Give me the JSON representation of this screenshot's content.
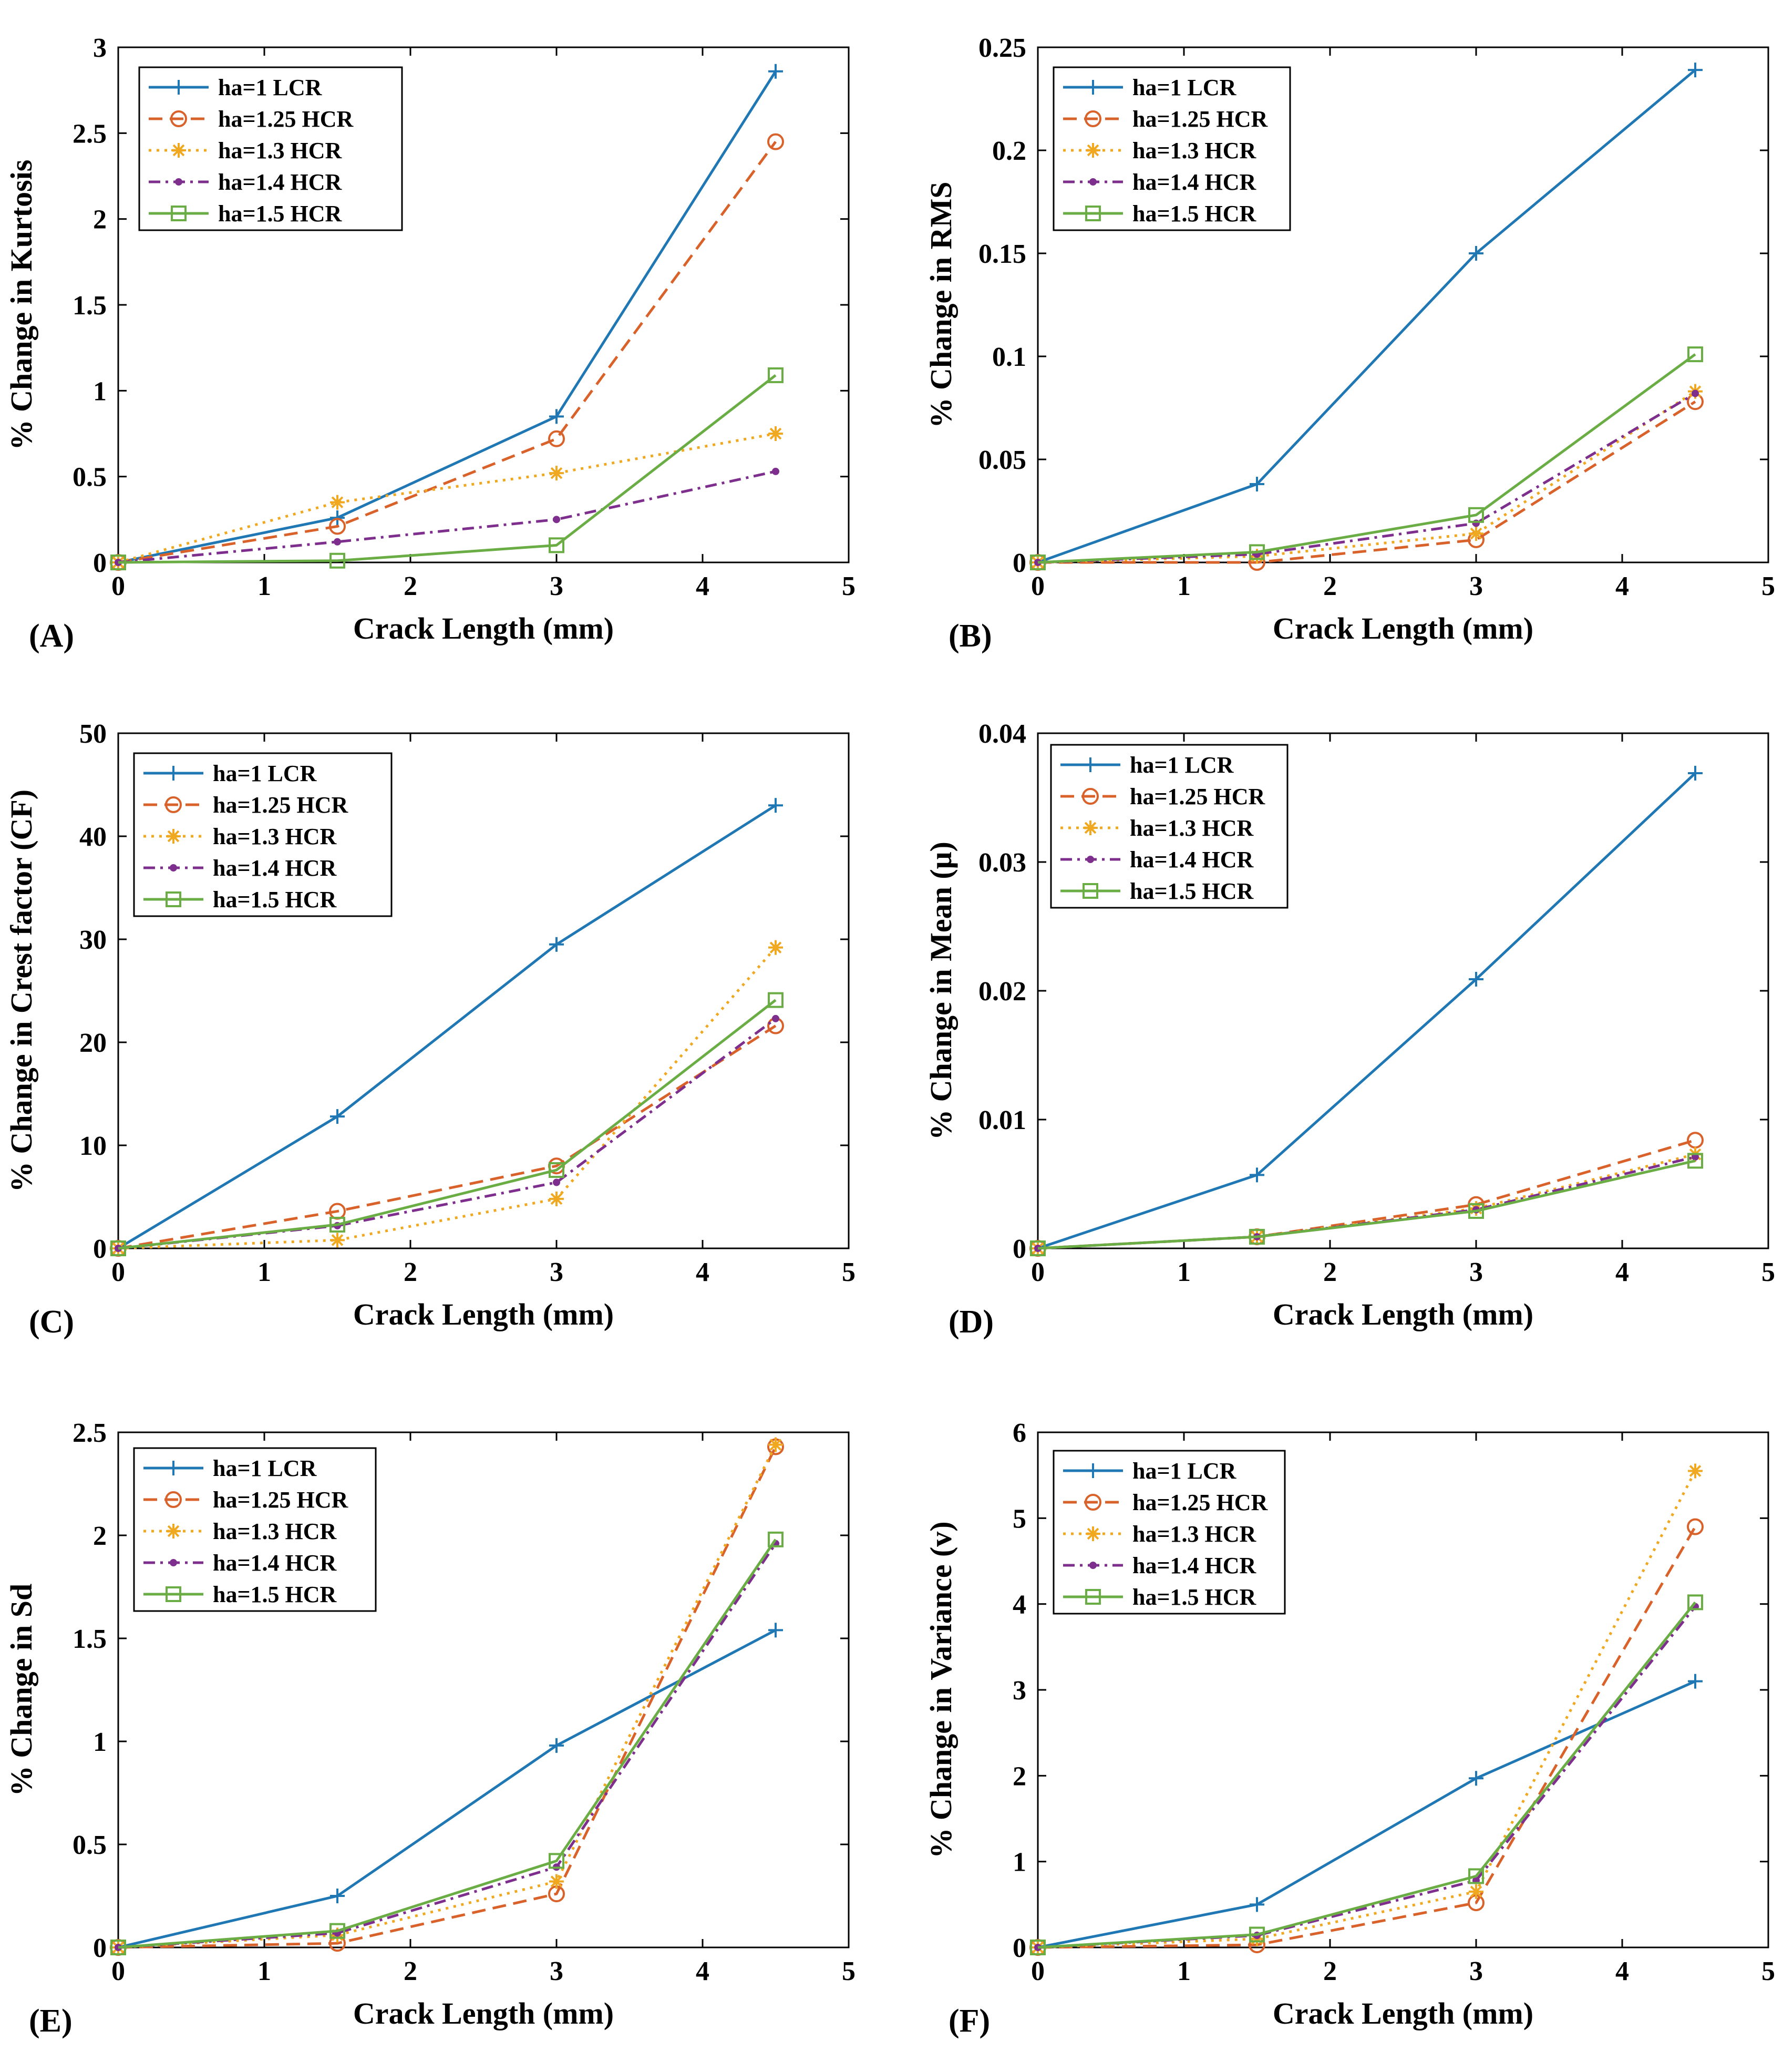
{
  "figure": {
    "xlabel": "Crack Length (mm)",
    "legend_entries": [
      "ha=1 LCR",
      "ha=1.25 HCR",
      "ha=1.3 HCR",
      "ha=1.4 HCR",
      "ha=1.5 HCR"
    ]
  },
  "colors": {
    "ha_1_LCR": "#1f77b4",
    "ha_1_25_HCR": "#d9622b",
    "ha_1_3_HCR": "#f0a820",
    "ha_1_4_HCR": "#7e2f8e",
    "ha_1_5_HCR": "#6aad45"
  },
  "chart_data": [
    {
      "panel": "(A)",
      "type": "line",
      "xlabel": "Crack Length (mm)",
      "ylabel": "% Change in Kurtosis",
      "xlim": [
        0,
        5
      ],
      "ylim": [
        0,
        3
      ],
      "xticks": [
        "0",
        "1",
        "2",
        "3",
        "4",
        "5"
      ],
      "yticks": [
        "0",
        "0.5",
        "1",
        "1.5",
        "2",
        "2.5",
        "3"
      ],
      "legend_position": "top-left",
      "x": [
        0,
        1.5,
        3,
        4.5
      ],
      "series": [
        {
          "name": "ha=1 LCR",
          "values": [
            0,
            0.26,
            0.85,
            2.86
          ]
        },
        {
          "name": "ha=1.25 HCR",
          "values": [
            0,
            0.21,
            0.72,
            2.45
          ]
        },
        {
          "name": "ha=1.3 HCR",
          "values": [
            0,
            0.35,
            0.52,
            0.75
          ]
        },
        {
          "name": "ha=1.4 HCR",
          "values": [
            0,
            0.12,
            0.25,
            0.53
          ]
        },
        {
          "name": "ha=1.5 HCR",
          "values": [
            0,
            0.01,
            0.1,
            1.09
          ]
        }
      ]
    },
    {
      "panel": "(B)",
      "type": "line",
      "xlabel": "Crack Length (mm)",
      "ylabel": "% Change in RMS",
      "xlim": [
        0,
        5
      ],
      "ylim": [
        0,
        0.25
      ],
      "xticks": [
        "0",
        "1",
        "2",
        "3",
        "4",
        "5"
      ],
      "yticks": [
        "0",
        "0.05",
        "0.1",
        "0.15",
        "0.2",
        "0.25"
      ],
      "legend_position": "top-left",
      "x": [
        0,
        1.5,
        3,
        4.5
      ],
      "series": [
        {
          "name": "ha=1 LCR",
          "values": [
            0,
            0.038,
            0.15,
            0.239
          ]
        },
        {
          "name": "ha=1.25 HCR",
          "values": [
            0,
            0.0,
            0.011,
            0.078
          ]
        },
        {
          "name": "ha=1.3 HCR",
          "values": [
            0,
            0.003,
            0.014,
            0.083
          ]
        },
        {
          "name": "ha=1.4 HCR",
          "values": [
            0,
            0.004,
            0.019,
            0.082
          ]
        },
        {
          "name": "ha=1.5 HCR",
          "values": [
            0,
            0.005,
            0.023,
            0.101
          ]
        }
      ]
    },
    {
      "panel": "(C)",
      "type": "line",
      "xlabel": "Crack Length (mm)",
      "ylabel": "% Change in Crest factor (CF)",
      "xlim": [
        0,
        5
      ],
      "ylim": [
        0,
        50
      ],
      "xticks": [
        "0",
        "1",
        "2",
        "3",
        "4",
        "5"
      ],
      "yticks": [
        "0",
        "10",
        "20",
        "30",
        "40",
        "50"
      ],
      "legend_position": "top-left",
      "x": [
        0,
        1.5,
        3,
        4.5
      ],
      "series": [
        {
          "name": "ha=1 LCR",
          "values": [
            0,
            12.8,
            29.5,
            43.0
          ]
        },
        {
          "name": "ha=1.25 HCR",
          "values": [
            0,
            3.6,
            8.0,
            21.6
          ]
        },
        {
          "name": "ha=1.3 HCR",
          "values": [
            0,
            0.8,
            4.8,
            29.2
          ]
        },
        {
          "name": "ha=1.4 HCR",
          "values": [
            0,
            2.2,
            6.4,
            22.3
          ]
        },
        {
          "name": "ha=1.5 HCR",
          "values": [
            0,
            2.3,
            7.6,
            24.1
          ]
        }
      ]
    },
    {
      "panel": "(D)",
      "type": "line",
      "xlabel": "Crack Length (mm)",
      "ylabel": "% Change in Mean (μ)",
      "xlim": [
        0,
        5
      ],
      "ylim": [
        0,
        0.04
      ],
      "xticks": [
        "0",
        "1",
        "2",
        "3",
        "4",
        "5"
      ],
      "yticks": [
        "0",
        "0.01",
        "0.02",
        "0.03",
        "0.04"
      ],
      "legend_position": "top-left",
      "x": [
        0,
        1.5,
        3,
        4.5
      ],
      "series": [
        {
          "name": "ha=1 LCR",
          "values": [
            0,
            0.0057,
            0.0209,
            0.0369
          ]
        },
        {
          "name": "ha=1.25 HCR",
          "values": [
            0,
            0.0009,
            0.0034,
            0.0084
          ]
        },
        {
          "name": "ha=1.3 HCR",
          "values": [
            0,
            0.0009,
            0.0031,
            0.0073
          ]
        },
        {
          "name": "ha=1.4 HCR",
          "values": [
            0,
            0.0009,
            0.003,
            0.0071
          ]
        },
        {
          "name": "ha=1.5 HCR",
          "values": [
            0,
            0.0009,
            0.0029,
            0.0068
          ]
        }
      ]
    },
    {
      "panel": "(E)",
      "type": "line",
      "xlabel": "Crack Length (mm)",
      "ylabel": "% Change in Sd",
      "xlim": [
        0,
        5
      ],
      "ylim": [
        0,
        2.5
      ],
      "xticks": [
        "0",
        "1",
        "2",
        "3",
        "4",
        "5"
      ],
      "yticks": [
        "0",
        "0.5",
        "1",
        "1.5",
        "2",
        "2.5"
      ],
      "legend_position": "top-left",
      "x": [
        0,
        1.5,
        3,
        4.5
      ],
      "series": [
        {
          "name": "ha=1 LCR",
          "values": [
            0,
            0.25,
            0.98,
            1.54
          ]
        },
        {
          "name": "ha=1.25 HCR",
          "values": [
            0,
            0.02,
            0.26,
            2.43
          ]
        },
        {
          "name": "ha=1.3 HCR",
          "values": [
            0,
            0.06,
            0.32,
            2.44
          ]
        },
        {
          "name": "ha=1.4 HCR",
          "values": [
            0,
            0.07,
            0.39,
            1.96
          ]
        },
        {
          "name": "ha=1.5 HCR",
          "values": [
            0,
            0.08,
            0.42,
            1.98
          ]
        }
      ]
    },
    {
      "panel": "(F)",
      "type": "line",
      "xlabel": "Crack Length (mm)",
      "ylabel": "% Change in Variance (v)",
      "xlim": [
        0,
        5
      ],
      "ylim": [
        0,
        6
      ],
      "xticks": [
        "0",
        "1",
        "2",
        "3",
        "4",
        "5"
      ],
      "yticks": [
        "0",
        "1",
        "2",
        "3",
        "4",
        "5",
        "6"
      ],
      "legend_position": "top-left",
      "x": [
        0,
        1.5,
        3,
        4.5
      ],
      "series": [
        {
          "name": "ha=1 LCR",
          "values": [
            0,
            0.5,
            1.97,
            3.1
          ]
        },
        {
          "name": "ha=1.25 HCR",
          "values": [
            0,
            0.03,
            0.52,
            4.9
          ]
        },
        {
          "name": "ha=1.3 HCR",
          "values": [
            0,
            0.1,
            0.65,
            5.55
          ]
        },
        {
          "name": "ha=1.4 HCR",
          "values": [
            0,
            0.14,
            0.78,
            3.97
          ]
        },
        {
          "name": "ha=1.5 HCR",
          "values": [
            0,
            0.15,
            0.83,
            4.02
          ]
        }
      ]
    }
  ]
}
